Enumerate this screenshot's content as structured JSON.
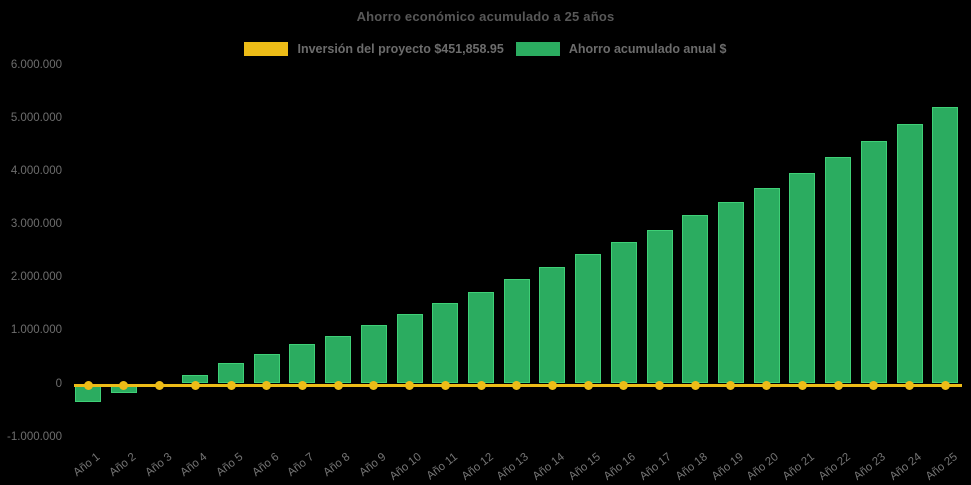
{
  "title": "Ahorro económico acumulado a 25 años",
  "colors": {
    "background": "#000000",
    "bar_fill": "#2bac60",
    "bar_edge": "#3fd077",
    "line_yellow": "#edbc17",
    "title_text": "#585858",
    "legend_text": "#6c6c6c",
    "axis_text": "#6e6e6e"
  },
  "legend": [
    {
      "label": "Inversión del proyecto $451,858.95",
      "color": "#edbc17",
      "series_type": "line"
    },
    {
      "label": "Ahorro acumulado anual $",
      "color": "#2bac60",
      "series_type": "bar"
    }
  ],
  "chart_data": {
    "type": "bar",
    "title": "Ahorro económico acumulado a 25 años",
    "background": "#000000",
    "grid": false,
    "legend_position": "top",
    "categories": [
      "Año 1",
      "Año 2",
      "Año 3",
      "Año 4",
      "Año 5",
      "Año 6",
      "Año 7",
      "Año 8",
      "Año 9",
      "Año 10",
      "Año 11",
      "Año 12",
      "Año 13",
      "Año 14",
      "Año 15",
      "Año 16",
      "Año 17",
      "Año 18",
      "Año 19",
      "Año 20",
      "Año 21",
      "Año 22",
      "Año 23",
      "Año 24",
      "Año 25"
    ],
    "series": [
      {
        "name": "Ahorro acumulado anual $",
        "type": "bar",
        "color": "#2bac60",
        "values": [
          -340000,
          -175000,
          0,
          165000,
          380000,
          550000,
          740000,
          895000,
          1100000,
          1300000,
          1520000,
          1730000,
          1960000,
          2200000,
          2430000,
          2660000,
          2900000,
          3170000,
          3420000,
          3690000,
          3970000,
          4270000,
          4570000,
          4890000,
          5200000
        ]
      },
      {
        "name": "Inversión del proyecto $451,858.95",
        "type": "line",
        "color": "#edbc17",
        "values": [
          -35000,
          -35000,
          -35000,
          -35000,
          -35000,
          -35000,
          -35000,
          -35000,
          -35000,
          -35000,
          -35000,
          -35000,
          -35000,
          -35000,
          -35000,
          -35000,
          -35000,
          -35000,
          -35000,
          -35000,
          -35000,
          -35000,
          -35000,
          -35000,
          -35000
        ],
        "note": "flat horizontal line with point markers drawn just below the zero gridline"
      }
    ],
    "xlabel": "",
    "ylabel": "",
    "ylim": [
      -1000000,
      6000000
    ],
    "y_ticks": [
      6000000,
      5000000,
      4000000,
      3000000,
      2000000,
      1000000,
      0,
      -1000000
    ],
    "y_tick_labels": [
      "6.000.000",
      "5.000.000",
      "4.000.000",
      "3.000.000",
      "2.000.000",
      "1.000.000",
      "0",
      "-1.000.000"
    ]
  }
}
